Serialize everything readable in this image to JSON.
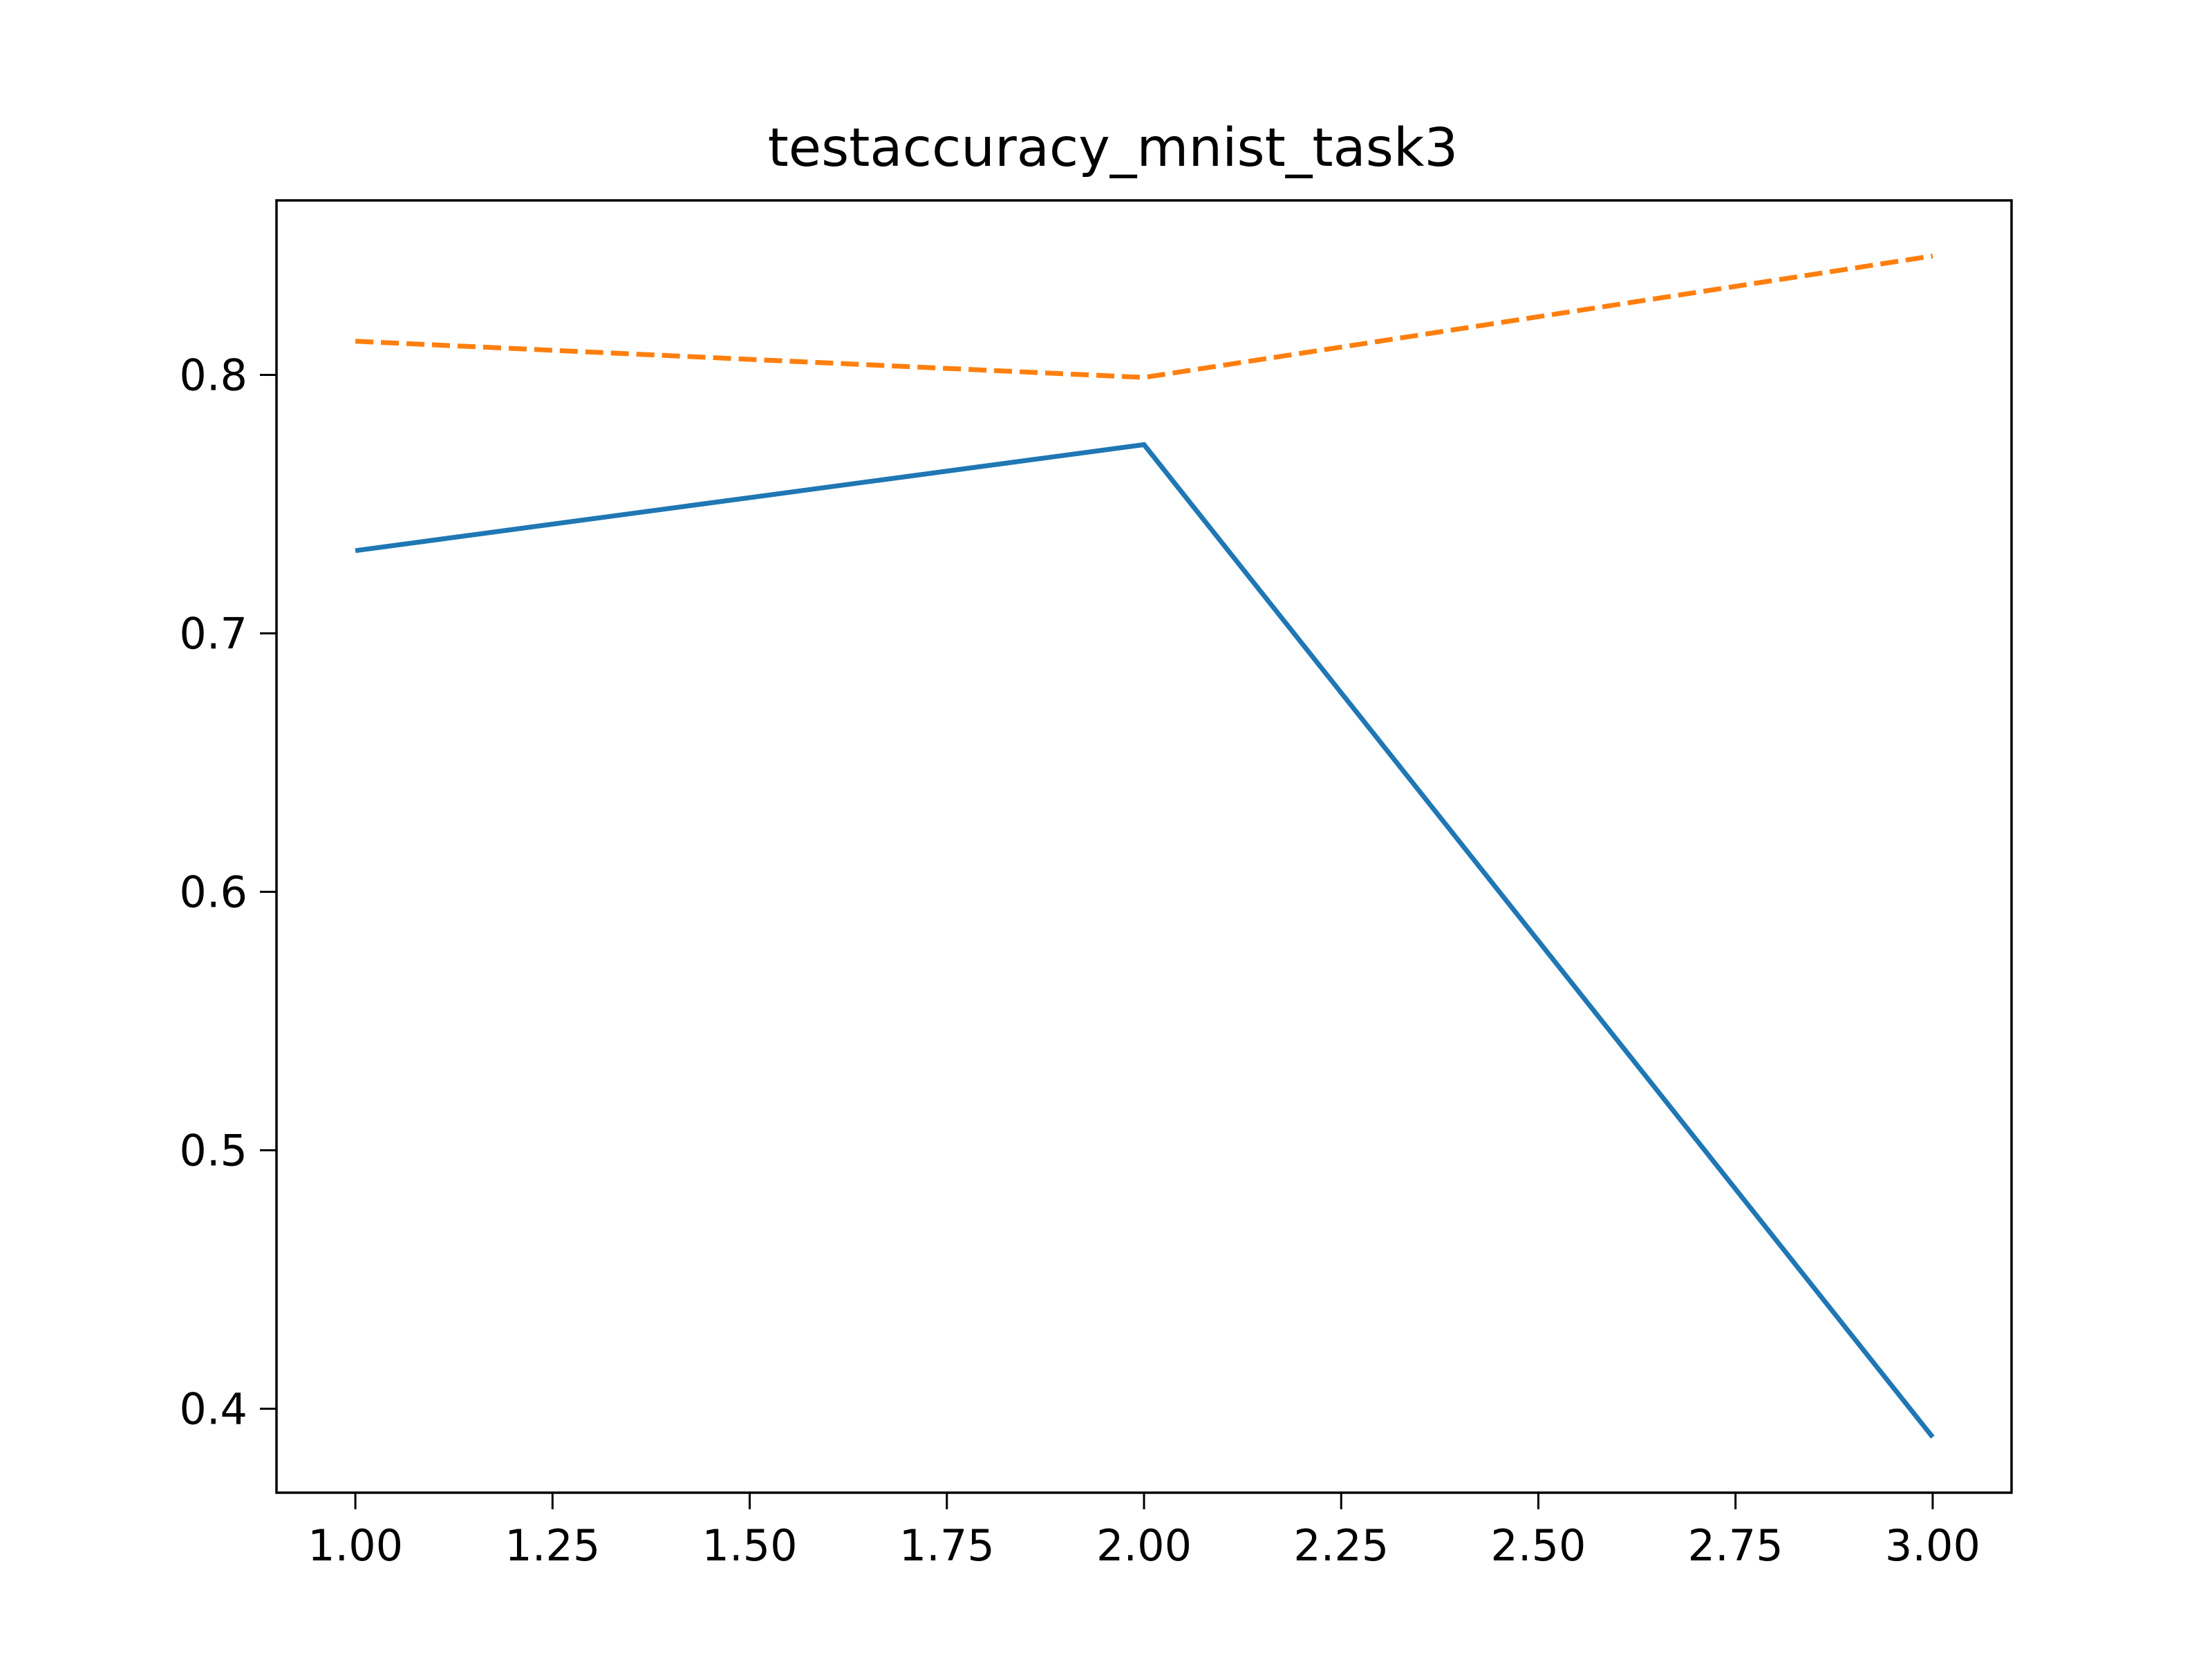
{
  "chart_data": {
    "type": "line",
    "title": "testaccuracy_mnist_task3",
    "xlabel": "",
    "ylabel": "",
    "x": [
      1,
      2,
      3
    ],
    "series": [
      {
        "values": [
          0.732,
          0.773,
          0.389
        ],
        "color": "#1f77b4",
        "line_style": "solid"
      },
      {
        "values": [
          0.813,
          0.799,
          0.846
        ],
        "color": "#ff7f0e",
        "line_style": "dashed"
      }
    ],
    "xlim": [
      0.9,
      3.1
    ],
    "ylim": [
      0.3675,
      0.8675
    ],
    "x_ticks": [
      1.0,
      1.25,
      1.5,
      1.75,
      2.0,
      2.25,
      2.5,
      2.75,
      3.0
    ],
    "x_tick_labels": [
      "1.00",
      "1.25",
      "1.50",
      "1.75",
      "2.00",
      "2.25",
      "2.50",
      "2.75",
      "3.00"
    ],
    "y_ticks": [
      0.4,
      0.5,
      0.6,
      0.7,
      0.8
    ],
    "y_tick_labels": [
      "0.4",
      "0.5",
      "0.6",
      "0.7",
      "0.8"
    ],
    "grid": false,
    "legend": "none"
  }
}
